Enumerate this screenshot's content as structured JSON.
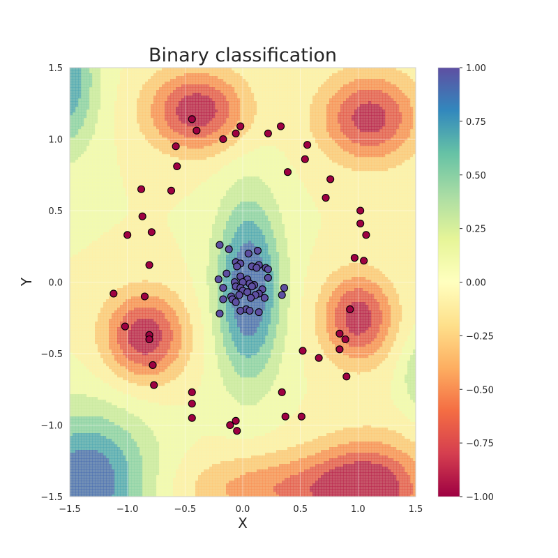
{
  "chart_data": {
    "type": "scatter",
    "title": "Binary classification",
    "xlabel": "X",
    "ylabel": "Y",
    "xlim": [
      -1.5,
      1.5
    ],
    "ylim": [
      -1.5,
      1.5
    ],
    "grid": true,
    "xticks": [
      -1.5,
      -1.0,
      -0.5,
      0.0,
      0.5,
      1.0,
      1.5
    ],
    "yticks": [
      -1.5,
      -1.0,
      -0.5,
      0.0,
      0.5,
      1.0,
      1.5
    ],
    "xtick_labels": [
      "−1.5",
      "−1.0",
      "−0.5",
      "0.0",
      "0.5",
      "1.0",
      "1.5"
    ],
    "ytick_labels": [
      "−1.5",
      "−1.0",
      "−0.5",
      "0.0",
      "0.5",
      "1.0",
      "1.5"
    ],
    "colorbar": {
      "range": [
        -1.0,
        1.0
      ],
      "ticks": [
        1.0,
        0.75,
        0.5,
        0.25,
        0.0,
        -0.25,
        -0.5,
        -0.75,
        -1.0
      ],
      "tick_labels": [
        "1.00",
        "0.75",
        "0.50",
        "0.25",
        "0.00",
        "−0.25",
        "−0.50",
        "−0.75",
        "−1.00"
      ],
      "colormap": "Spectral",
      "colors": [
        "#9e0142",
        "#d53e4f",
        "#f46d43",
        "#fdae61",
        "#fee08b",
        "#ffffbf",
        "#e6f598",
        "#abdda4",
        "#66c2a5",
        "#3288bd",
        "#5e4fa2"
      ]
    },
    "contour": {
      "type": "filled",
      "opacity": 0.75,
      "positive_blobs": [
        {
          "cx": 0.05,
          "cy": -0.05,
          "sx": 0.2,
          "sy": 0.45,
          "a": 1.05
        },
        {
          "cx": -1.35,
          "cy": -1.4,
          "sx": 0.4,
          "sy": 0.35,
          "a": 1.0
        },
        {
          "cx": -1.55,
          "cy": 1.4,
          "sx": 0.2,
          "sy": 0.35,
          "a": 0.8
        },
        {
          "cx": 1.6,
          "cy": -0.65,
          "sx": 0.15,
          "sy": 0.2,
          "a": 0.5
        }
      ],
      "negative_blobs": [
        {
          "cx": -0.4,
          "cy": 1.2,
          "sx": 0.3,
          "sy": 0.2,
          "a": 0.95
        },
        {
          "cx": 1.1,
          "cy": 1.15,
          "sx": 0.3,
          "sy": 0.22,
          "a": 0.9
        },
        {
          "cx": -0.85,
          "cy": -0.38,
          "sx": 0.25,
          "sy": 0.22,
          "a": 0.95
        },
        {
          "cx": 1.0,
          "cy": -0.25,
          "sx": 0.22,
          "sy": 0.22,
          "a": 0.92
        },
        {
          "cx": 1.1,
          "cy": -1.45,
          "sx": 0.35,
          "sy": 0.25,
          "a": 0.9
        },
        {
          "cx": 0.3,
          "cy": -1.45,
          "sx": 0.6,
          "sy": 0.18,
          "a": 0.55
        }
      ]
    },
    "series": [
      {
        "class": 1,
        "color": "#5e4fa2",
        "points": [
          [
            -0.2,
            0.26
          ],
          [
            -0.12,
            0.23
          ],
          [
            0.05,
            0.2
          ],
          [
            0.13,
            0.22
          ],
          [
            -0.06,
            0.14
          ],
          [
            -0.02,
            0.13
          ],
          [
            0.08,
            0.11
          ],
          [
            0.14,
            0.12
          ],
          [
            0.2,
            0.1
          ],
          [
            0.22,
            0.09
          ],
          [
            -0.05,
            0.11
          ],
          [
            0.12,
            0.1
          ],
          [
            -0.14,
            0.06
          ],
          [
            -0.02,
            0.04
          ],
          [
            0.04,
            0.02
          ],
          [
            0.22,
            0.03
          ],
          [
            -0.21,
            0.02
          ],
          [
            -0.07,
            0.0
          ],
          [
            0.0,
            0.0
          ],
          [
            0.06,
            -0.01
          ],
          [
            0.1,
            -0.02
          ],
          [
            -0.17,
            -0.04
          ],
          [
            -0.06,
            -0.03
          ],
          [
            -0.02,
            -0.04
          ],
          [
            0.08,
            -0.03
          ],
          [
            0.17,
            -0.05
          ],
          [
            0.36,
            -0.04
          ],
          [
            0.0,
            -0.06
          ],
          [
            0.04,
            -0.07
          ],
          [
            0.14,
            -0.08
          ],
          [
            0.11,
            -0.09
          ],
          [
            0.34,
            -0.09
          ],
          [
            -0.1,
            -0.1
          ],
          [
            -0.03,
            -0.09
          ],
          [
            0.07,
            -0.11
          ],
          [
            -0.17,
            -0.12
          ],
          [
            -0.09,
            -0.12
          ],
          [
            -0.06,
            -0.14
          ],
          [
            0.19,
            -0.11
          ],
          [
            0.03,
            -0.19
          ],
          [
            0.06,
            -0.2
          ],
          [
            -0.02,
            -0.2
          ],
          [
            0.14,
            -0.21
          ],
          [
            -0.2,
            -0.22
          ]
        ]
      },
      {
        "class": -1,
        "color": "#9e0142",
        "points": [
          [
            -0.44,
            1.14
          ],
          [
            -0.4,
            1.06
          ],
          [
            -0.02,
            1.09
          ],
          [
            -0.06,
            1.04
          ],
          [
            0.22,
            1.04
          ],
          [
            0.33,
            1.09
          ],
          [
            -0.17,
            1.0
          ],
          [
            -0.58,
            0.95
          ],
          [
            0.56,
            0.96
          ],
          [
            -0.57,
            0.81
          ],
          [
            0.54,
            0.86
          ],
          [
            0.39,
            0.77
          ],
          [
            0.76,
            0.72
          ],
          [
            -0.88,
            0.65
          ],
          [
            -0.62,
            0.64
          ],
          [
            0.72,
            0.59
          ],
          [
            1.02,
            0.5
          ],
          [
            -0.87,
            0.46
          ],
          [
            1.02,
            0.41
          ],
          [
            -1.0,
            0.33
          ],
          [
            -0.79,
            0.35
          ],
          [
            1.07,
            0.33
          ],
          [
            0.97,
            0.17
          ],
          [
            1.05,
            0.15
          ],
          [
            -0.81,
            0.12
          ],
          [
            -1.12,
            -0.08
          ],
          [
            -0.85,
            -0.1
          ],
          [
            0.93,
            -0.19
          ],
          [
            -1.02,
            -0.31
          ],
          [
            0.84,
            -0.36
          ],
          [
            -0.81,
            -0.37
          ],
          [
            -0.81,
            -0.4
          ],
          [
            0.89,
            -0.4
          ],
          [
            0.84,
            -0.47
          ],
          [
            0.52,
            -0.48
          ],
          [
            0.66,
            -0.53
          ],
          [
            -0.78,
            -0.58
          ],
          [
            0.9,
            -0.66
          ],
          [
            -0.77,
            -0.72
          ],
          [
            -0.44,
            -0.77
          ],
          [
            0.34,
            -0.77
          ],
          [
            -0.44,
            -0.85
          ],
          [
            -0.44,
            -0.95
          ],
          [
            0.37,
            -0.94
          ],
          [
            0.51,
            -0.94
          ],
          [
            -0.06,
            -0.97
          ],
          [
            -0.11,
            -1.0
          ],
          [
            -0.05,
            -1.04
          ]
        ]
      }
    ]
  }
}
